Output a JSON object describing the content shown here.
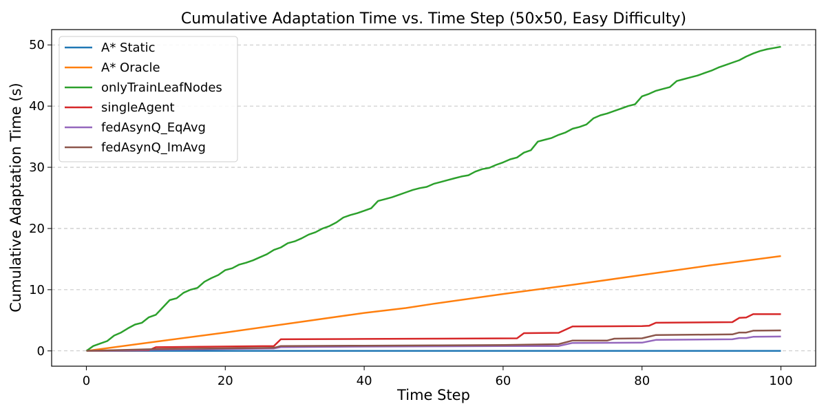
{
  "chart_data": {
    "type": "line",
    "title": "Cumulative Adaptation Time vs. Time Step (50x50, Easy Difficulty)",
    "xlabel": "Time Step",
    "ylabel": "Cumulative Adaptation Time (s)",
    "xlim": [
      -5,
      105
    ],
    "ylim": [
      -2.5,
      52.5
    ],
    "xticks": [
      0,
      20,
      40,
      60,
      80,
      100
    ],
    "yticks": [
      0,
      10,
      20,
      30,
      40,
      50
    ],
    "grid": "horizontal dashed",
    "legend_position": "top-left",
    "series": [
      {
        "name": "A* Static",
        "color": "#1f77b4",
        "points": [
          [
            0,
            0
          ],
          [
            100,
            0
          ]
        ]
      },
      {
        "name": "A* Oracle",
        "color": "#ff7f0e",
        "points": [
          [
            0,
            0
          ],
          [
            10,
            1.5
          ],
          [
            20,
            3.0
          ],
          [
            30,
            4.6
          ],
          [
            40,
            6.2
          ],
          [
            46,
            7.0
          ],
          [
            50,
            7.7
          ],
          [
            60,
            9.3
          ],
          [
            70,
            10.8
          ],
          [
            80,
            12.4
          ],
          [
            90,
            14.0
          ],
          [
            100,
            15.5
          ]
        ]
      },
      {
        "name": "onlyTrainLeafNodes",
        "color": "#2ca02c",
        "points": [
          [
            0,
            0
          ],
          [
            1,
            0.8
          ],
          [
            2,
            1.2
          ],
          [
            3,
            1.6
          ],
          [
            4,
            2.5
          ],
          [
            5,
            3.0
          ],
          [
            6,
            3.7
          ],
          [
            7,
            4.3
          ],
          [
            8,
            4.6
          ],
          [
            9,
            5.5
          ],
          [
            10,
            5.9
          ],
          [
            11,
            7.1
          ],
          [
            12,
            8.3
          ],
          [
            13,
            8.6
          ],
          [
            14,
            9.5
          ],
          [
            15,
            10.0
          ],
          [
            16,
            10.3
          ],
          [
            17,
            11.3
          ],
          [
            18,
            11.9
          ],
          [
            19,
            12.4
          ],
          [
            20,
            13.2
          ],
          [
            21,
            13.5
          ],
          [
            22,
            14.1
          ],
          [
            23,
            14.4
          ],
          [
            24,
            14.8
          ],
          [
            25,
            15.3
          ],
          [
            26,
            15.8
          ],
          [
            27,
            16.5
          ],
          [
            28,
            16.9
          ],
          [
            29,
            17.6
          ],
          [
            30,
            17.9
          ],
          [
            31,
            18.4
          ],
          [
            32,
            19.0
          ],
          [
            33,
            19.4
          ],
          [
            34,
            20.0
          ],
          [
            35,
            20.4
          ],
          [
            36,
            21.0
          ],
          [
            37,
            21.8
          ],
          [
            38,
            22.2
          ],
          [
            39,
            22.5
          ],
          [
            40,
            22.9
          ],
          [
            41,
            23.3
          ],
          [
            42,
            24.5
          ],
          [
            43,
            24.8
          ],
          [
            44,
            25.1
          ],
          [
            45,
            25.5
          ],
          [
            46,
            25.9
          ],
          [
            47,
            26.3
          ],
          [
            48,
            26.6
          ],
          [
            49,
            26.8
          ],
          [
            50,
            27.3
          ],
          [
            51,
            27.6
          ],
          [
            52,
            27.9
          ],
          [
            53,
            28.2
          ],
          [
            54,
            28.5
          ],
          [
            55,
            28.7
          ],
          [
            56,
            29.3
          ],
          [
            57,
            29.7
          ],
          [
            58,
            29.9
          ],
          [
            59,
            30.4
          ],
          [
            60,
            30.8
          ],
          [
            61,
            31.3
          ],
          [
            62,
            31.6
          ],
          [
            63,
            32.4
          ],
          [
            64,
            32.8
          ],
          [
            65,
            34.2
          ],
          [
            66,
            34.5
          ],
          [
            67,
            34.8
          ],
          [
            68,
            35.3
          ],
          [
            69,
            35.7
          ],
          [
            70,
            36.3
          ],
          [
            71,
            36.6
          ],
          [
            72,
            37.0
          ],
          [
            73,
            38.0
          ],
          [
            74,
            38.5
          ],
          [
            75,
            38.8
          ],
          [
            76,
            39.2
          ],
          [
            77,
            39.6
          ],
          [
            78,
            40.0
          ],
          [
            79,
            40.3
          ],
          [
            80,
            41.6
          ],
          [
            81,
            42.0
          ],
          [
            82,
            42.5
          ],
          [
            83,
            42.8
          ],
          [
            84,
            43.1
          ],
          [
            85,
            44.1
          ],
          [
            86,
            44.4
          ],
          [
            87,
            44.7
          ],
          [
            88,
            45.0
          ],
          [
            89,
            45.4
          ],
          [
            90,
            45.8
          ],
          [
            91,
            46.3
          ],
          [
            92,
            46.7
          ],
          [
            93,
            47.1
          ],
          [
            94,
            47.5
          ],
          [
            95,
            48.1
          ],
          [
            96,
            48.6
          ],
          [
            97,
            49.0
          ],
          [
            98,
            49.3
          ],
          [
            99,
            49.5
          ],
          [
            100,
            49.7
          ]
        ]
      },
      {
        "name": "singleAgent",
        "color": "#d62728",
        "points": [
          [
            0,
            0
          ],
          [
            9,
            0.1
          ],
          [
            10,
            0.6
          ],
          [
            27,
            0.8
          ],
          [
            28,
            1.9
          ],
          [
            40,
            1.95
          ],
          [
            50,
            2.0
          ],
          [
            62,
            2.05
          ],
          [
            63,
            2.9
          ],
          [
            68,
            2.95
          ],
          [
            70,
            4.0
          ],
          [
            80,
            4.05
          ],
          [
            81,
            4.1
          ],
          [
            82,
            4.6
          ],
          [
            93,
            4.7
          ],
          [
            94,
            5.4
          ],
          [
            95,
            5.45
          ],
          [
            96,
            6.0
          ],
          [
            100,
            6.0
          ]
        ]
      },
      {
        "name": "fedAsynQ_EqAvg",
        "color": "#9467bd",
        "points": [
          [
            0,
            0
          ],
          [
            10,
            0.2
          ],
          [
            27,
            0.4
          ],
          [
            28,
            0.6
          ],
          [
            40,
            0.7
          ],
          [
            50,
            0.75
          ],
          [
            60,
            0.8
          ],
          [
            68,
            0.8
          ],
          [
            70,
            1.3
          ],
          [
            80,
            1.35
          ],
          [
            82,
            1.8
          ],
          [
            93,
            1.9
          ],
          [
            94,
            2.1
          ],
          [
            95,
            2.1
          ],
          [
            96,
            2.3
          ],
          [
            100,
            2.35
          ]
        ]
      },
      {
        "name": "fedAsynQ_ImAvg",
        "color": "#8c564b",
        "points": [
          [
            0,
            0
          ],
          [
            10,
            0.3
          ],
          [
            27,
            0.5
          ],
          [
            28,
            0.8
          ],
          [
            40,
            0.85
          ],
          [
            50,
            0.9
          ],
          [
            60,
            0.95
          ],
          [
            68,
            1.1
          ],
          [
            70,
            1.7
          ],
          [
            75,
            1.7
          ],
          [
            76,
            2.0
          ],
          [
            80,
            2.05
          ],
          [
            82,
            2.6
          ],
          [
            93,
            2.7
          ],
          [
            94,
            3.0
          ],
          [
            95,
            3.0
          ],
          [
            96,
            3.3
          ],
          [
            100,
            3.35
          ]
        ]
      }
    ]
  }
}
